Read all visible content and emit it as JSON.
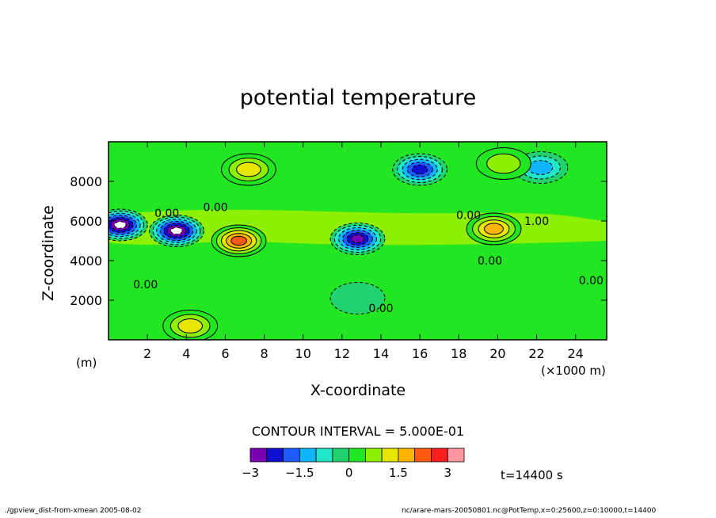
{
  "chart_data": {
    "type": "heatmap",
    "title": "potential temperature",
    "xlabel": "X-coordinate",
    "ylabel": "Z-coordinate",
    "x_units": "(×1000 m)",
    "y_units": "(m)",
    "xlim": [
      0,
      25.6
    ],
    "ylim": [
      0,
      10000
    ],
    "x_ticks": [
      2,
      4,
      6,
      8,
      10,
      12,
      14,
      16,
      18,
      20,
      22,
      24
    ],
    "y_ticks": [
      2000,
      4000,
      6000,
      8000
    ],
    "contour_interval_text": "CONTOUR INTERVAL = 5.000E-01",
    "contour_labels": [
      "0.00",
      "0.00",
      "0.00",
      "0.00",
      "0.00",
      "0.00",
      "1.00",
      "0.00"
    ],
    "colorbar": {
      "levels": [
        -3,
        -2.5,
        -2,
        -1.5,
        -1,
        -0.5,
        0,
        0.5,
        1,
        1.5,
        2,
        2.5,
        3
      ],
      "tick_labels": [
        "−3",
        "−1.5",
        "0",
        "1.5",
        "3"
      ],
      "colors": [
        "#7a00b4",
        "#1010d0",
        "#1f5cff",
        "#10b4ff",
        "#22e6c8",
        "#22d26e",
        "#22e622",
        "#8cf000",
        "#e6e600",
        "#ffb400",
        "#ff5a10",
        "#ff1e1e",
        "#ff96a0"
      ]
    },
    "features": [
      {
        "x": 16.0,
        "z": 8600,
        "value": -2.5
      },
      {
        "x": 3.5,
        "z": 5500,
        "value": -3.5
      },
      {
        "x": 0.6,
        "z": 5800,
        "value": -3.5
      },
      {
        "x": 12.8,
        "z": 5100,
        "value": -3.0
      },
      {
        "x": 6.7,
        "z": 5000,
        "value": 2.5
      },
      {
        "x": 7.2,
        "z": 8600,
        "value": 1.5
      },
      {
        "x": 19.8,
        "z": 5600,
        "value": 2.0
      },
      {
        "x": 22.2,
        "z": 8700,
        "value": -1.5
      },
      {
        "x": 20.3,
        "z": 8900,
        "value": 1.0
      },
      {
        "x": 12.8,
        "z": 2100,
        "value": -0.5
      },
      {
        "x": 4.2,
        "z": 700,
        "value": 1.5
      }
    ]
  },
  "time_label": "t=14400 s",
  "footer_left": "./gpview_dist-from-xmean   2005-08-02",
  "footer_right": "nc/arare-mars-20050801.nc@PotTemp,x=0:25600,z=0:10000,t=14400"
}
